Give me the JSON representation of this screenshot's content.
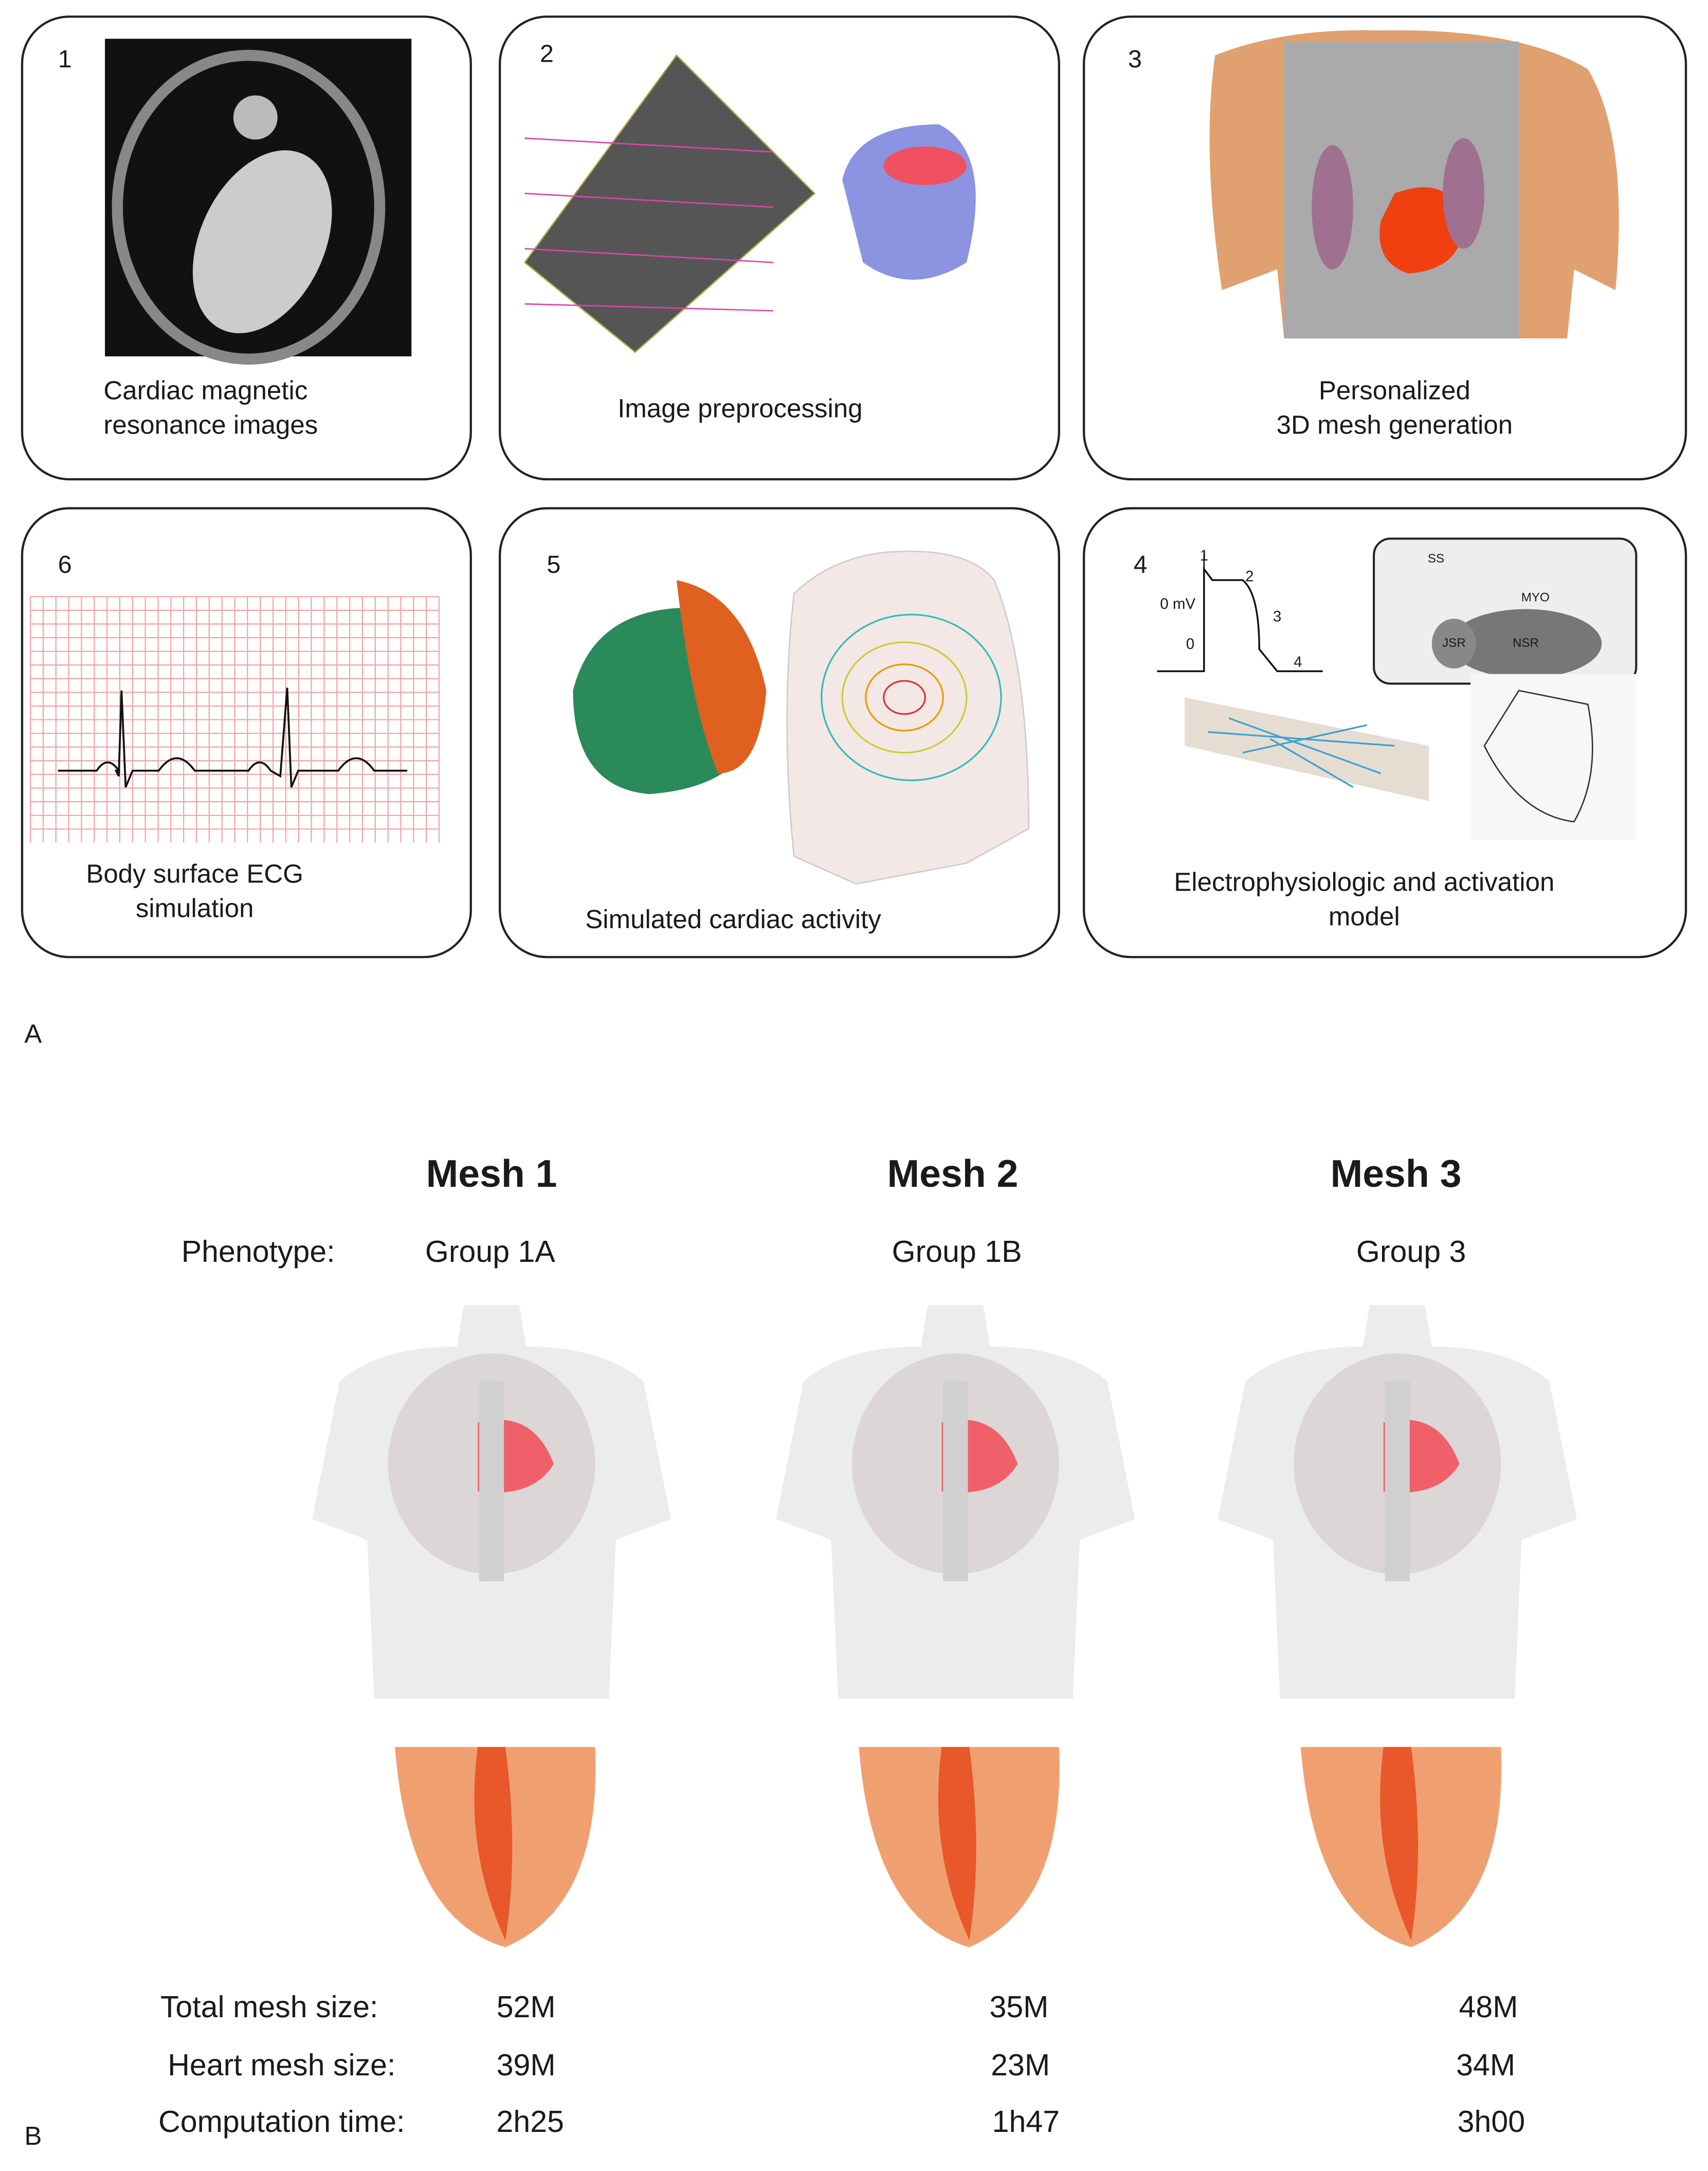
{
  "panel_a": {
    "label": "A",
    "boxes": [
      {
        "number": "1",
        "caption": [
          "Cardiac magnetic",
          "resonance images"
        ]
      },
      {
        "number": "2",
        "caption": [
          "Image preprocessing"
        ]
      },
      {
        "number": "3",
        "caption": [
          "Personalized",
          "3D mesh generation"
        ]
      },
      {
        "number": "6",
        "caption": [
          "Body surface ECG",
          "simulation"
        ]
      },
      {
        "number": "5",
        "caption": [
          "Simulated cardiac activity"
        ]
      },
      {
        "number": "4",
        "caption": [
          "Electrophysiologic and activation",
          "model"
        ],
        "labels": [
          "1",
          "2",
          "3",
          "4",
          "0 mV",
          "0",
          "SS",
          "MYO",
          "NSR",
          "JSR"
        ]
      }
    ]
  },
  "panel_b": {
    "label": "B",
    "phenotype_label": "Phenotype:",
    "row_labels": [
      "Total mesh size:",
      "Heart mesh size:",
      "Computation time:"
    ],
    "meshes": [
      {
        "title": "Mesh 1",
        "phenotype": "Group 1A",
        "values": [
          "52M",
          "39M",
          "2h25"
        ]
      },
      {
        "title": "Mesh 2",
        "phenotype": "Group 1B",
        "values": [
          "35M",
          "23M",
          "1h47"
        ]
      },
      {
        "title": "Mesh 3",
        "phenotype": "Group 3",
        "values": [
          "48M",
          "34M",
          "3h00"
        ]
      }
    ]
  }
}
